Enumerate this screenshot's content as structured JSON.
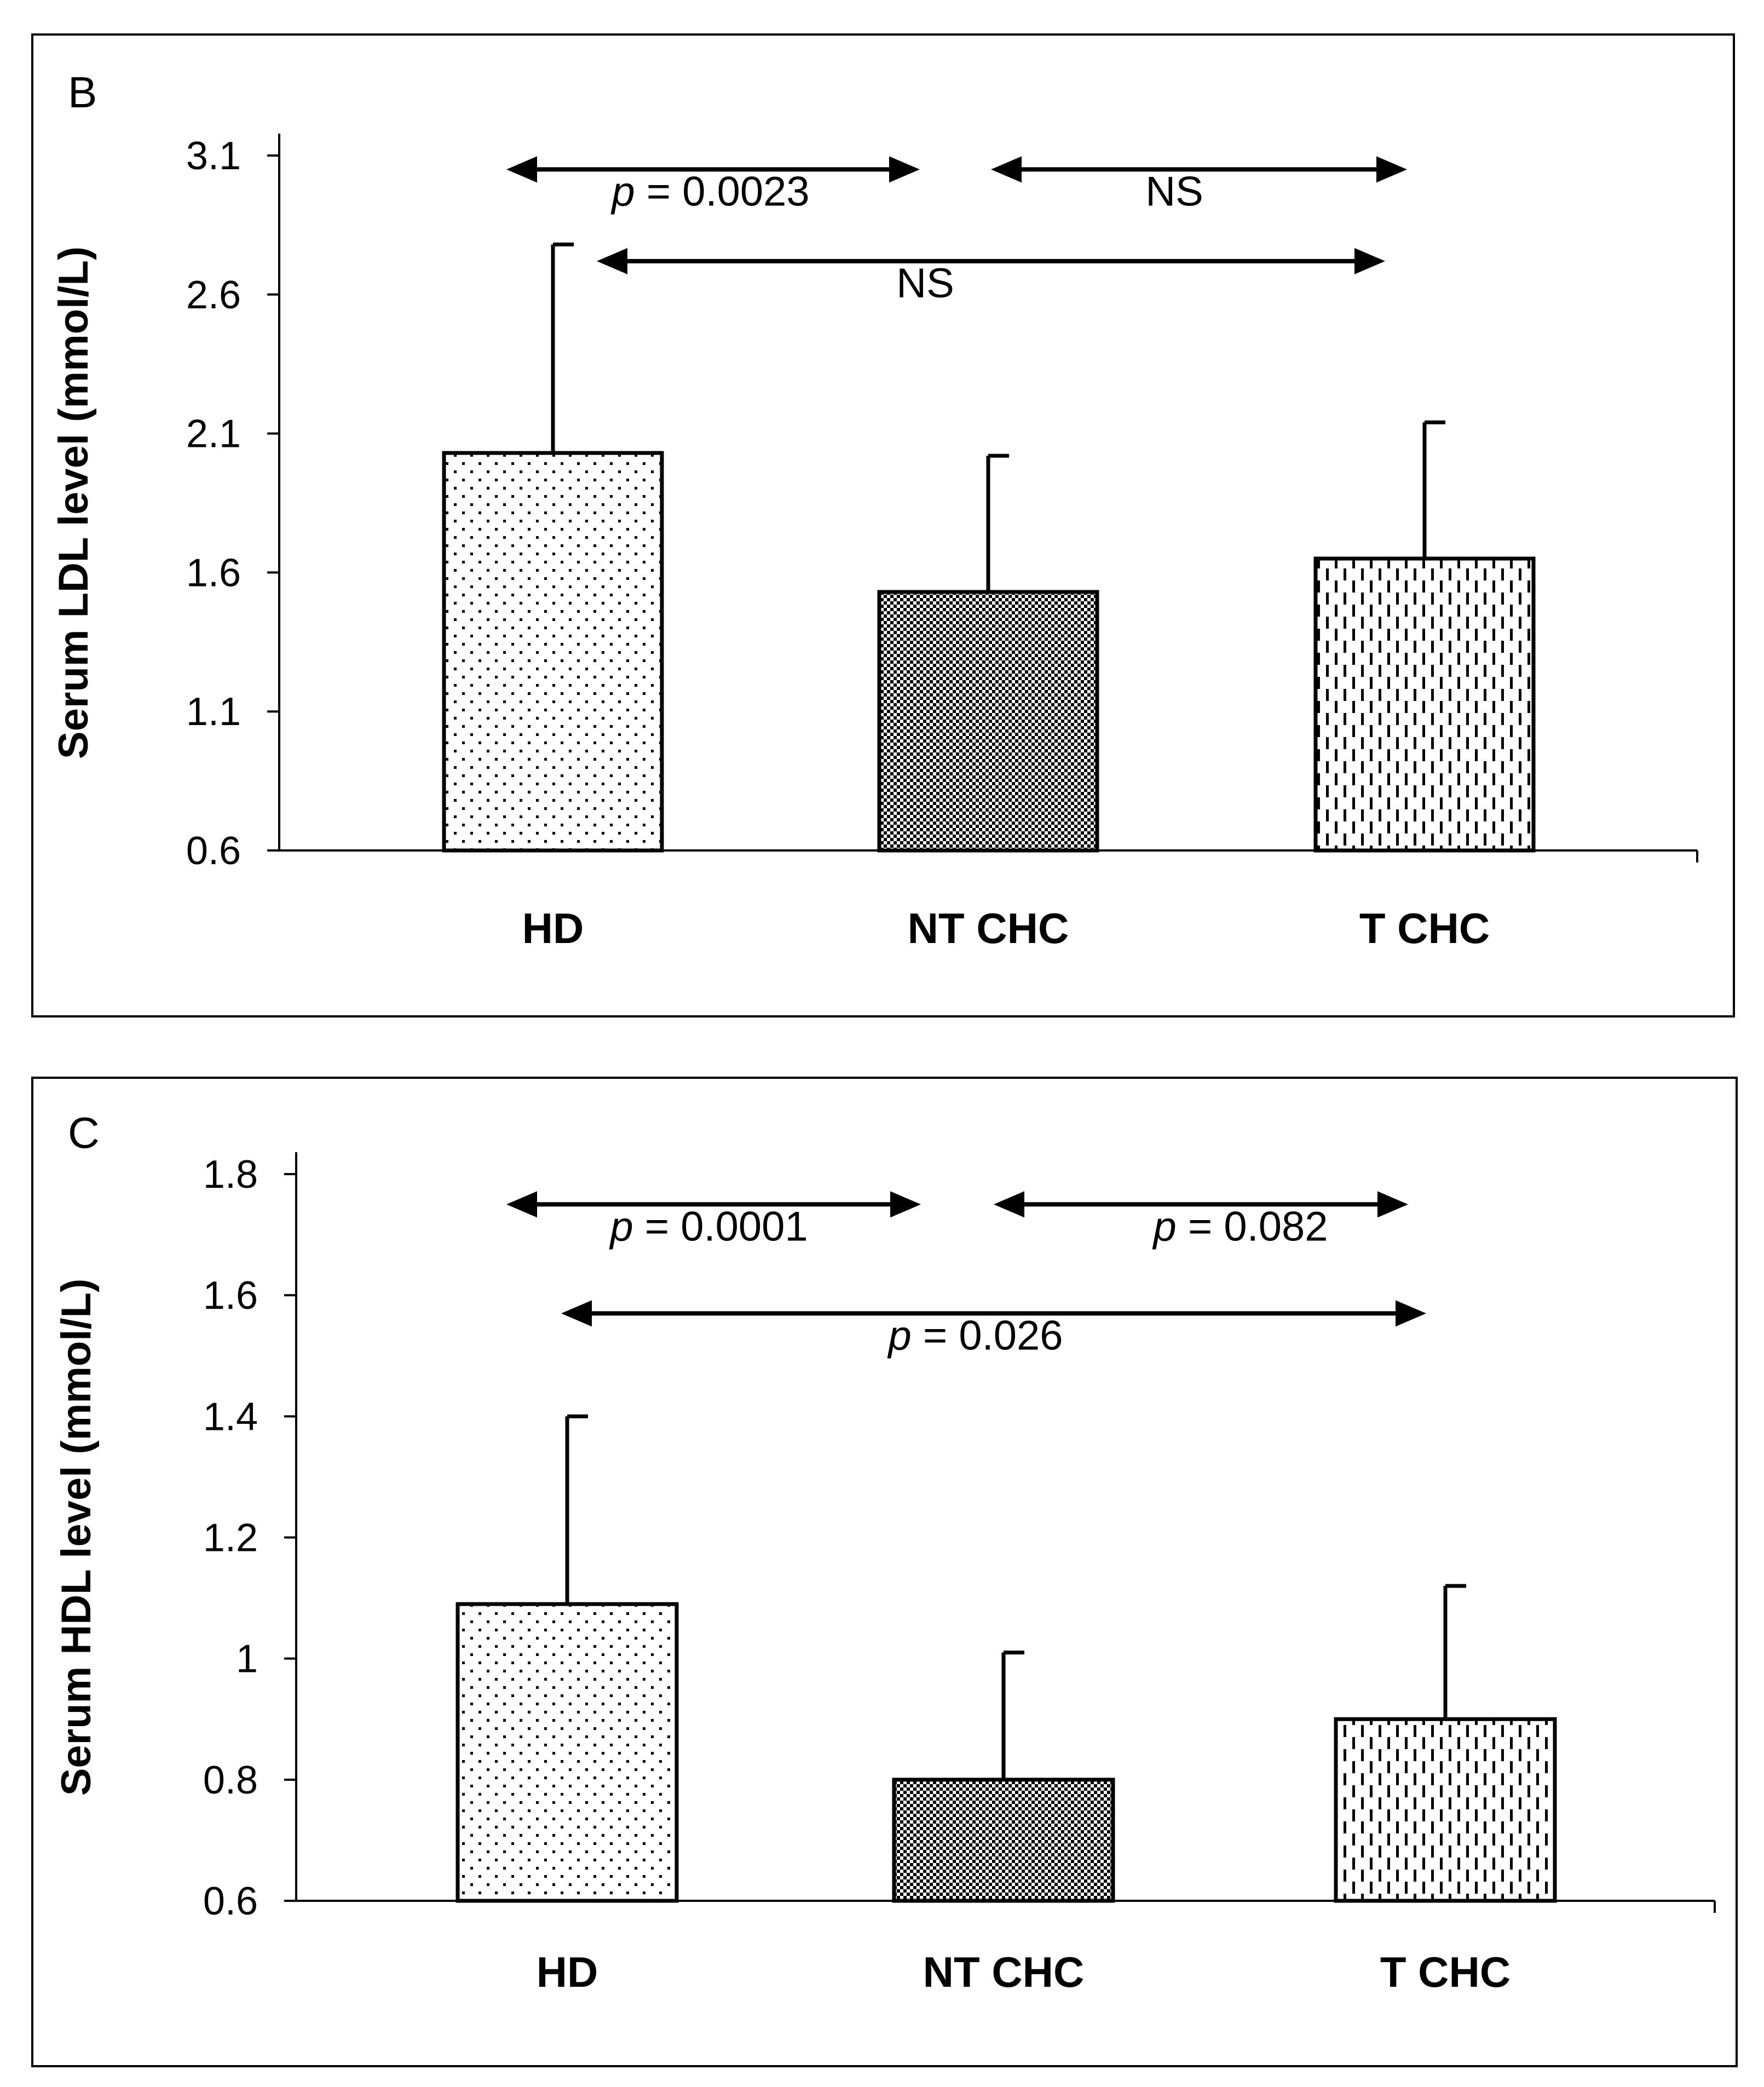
{
  "chart_data": [
    {
      "id": "B",
      "type": "bar",
      "panel_label": "B",
      "title": "",
      "xlabel": "",
      "ylabel": "Serum LDL level (mmol/L)",
      "ylim": [
        0.6,
        3.1
      ],
      "yticks": [
        "0.6",
        "1.1",
        "1.6",
        "2.1",
        "2.6",
        "3.1"
      ],
      "ytick_values": [
        0.6,
        1.1,
        1.6,
        2.1,
        2.6,
        3.1
      ],
      "grid": false,
      "categories": [
        "HD",
        "NT CHC",
        "T CHC"
      ],
      "values": [
        2.03,
        1.53,
        1.65
      ],
      "error_upper": [
        2.78,
        2.02,
        2.14
      ],
      "patterns": [
        "dots",
        "checker",
        "dashes"
      ],
      "comparisons": [
        {
          "from": "HD",
          "to": "NT CHC",
          "p_prefix": "p",
          "label": " = 0.0023",
          "level": 3.05
        },
        {
          "from": "NT CHC",
          "to": "T CHC",
          "p_prefix": "",
          "label": "NS",
          "level": 3.05
        },
        {
          "from": "HD",
          "to": "T CHC",
          "p_prefix": "",
          "label": "NS",
          "level": 2.72
        }
      ]
    },
    {
      "id": "C",
      "type": "bar",
      "panel_label": "C",
      "title": "",
      "xlabel": "",
      "ylabel": "Serum HDL level (mmol/L)",
      "ylim": [
        0.6,
        1.8
      ],
      "yticks": [
        "0.6",
        "0.8",
        "1",
        "1.2",
        "1.4",
        "1.6",
        "1.8"
      ],
      "ytick_values": [
        0.6,
        0.8,
        1.0,
        1.2,
        1.4,
        1.6,
        1.8
      ],
      "grid": false,
      "categories": [
        "HD",
        "NT CHC",
        "T CHC"
      ],
      "values": [
        1.09,
        0.8,
        0.9
      ],
      "error_upper": [
        1.4,
        1.01,
        1.12
      ],
      "patterns": [
        "dots",
        "checker",
        "dashes"
      ],
      "comparisons": [
        {
          "from": "HD",
          "to": "NT CHC",
          "p_prefix": "p",
          "label": " = 0.0001",
          "level": 1.75
        },
        {
          "from": "NT CHC",
          "to": "T CHC",
          "p_prefix": "p",
          "label": " = 0.082",
          "level": 1.75
        },
        {
          "from": "HD",
          "to": "T CHC",
          "p_prefix": "p",
          "label": " = 0.026",
          "level": 1.57
        }
      ]
    }
  ]
}
